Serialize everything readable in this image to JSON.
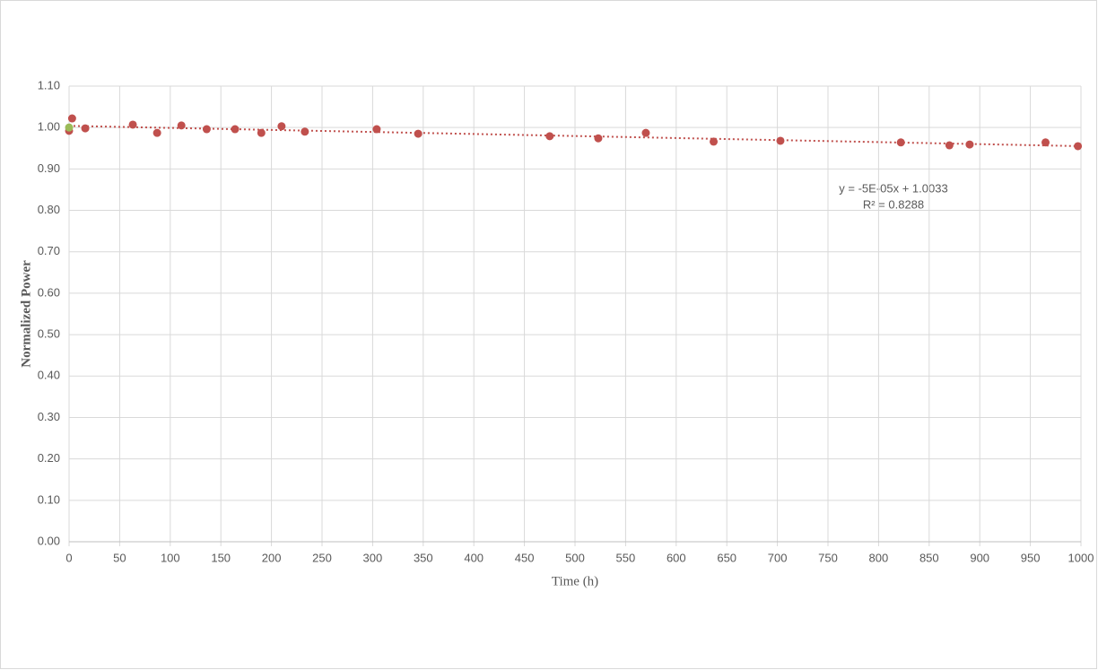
{
  "chart_data": {
    "type": "scatter",
    "xlabel": "Time (h)",
    "ylabel": "Normalized Power",
    "xlim": [
      0,
      1000
    ],
    "xticks": [
      0,
      50,
      100,
      150,
      200,
      250,
      300,
      350,
      400,
      450,
      500,
      550,
      600,
      650,
      700,
      750,
      800,
      850,
      900,
      950,
      1000
    ],
    "ylim": [
      0,
      1.1
    ],
    "yticks": [
      {
        "value": 0,
        "label": "0.00"
      },
      {
        "value": 0.1,
        "label": "0.10"
      },
      {
        "value": 0.2,
        "label": "0.20"
      },
      {
        "value": 0.3,
        "label": "0.30"
      },
      {
        "value": 0.4,
        "label": "0.40"
      },
      {
        "value": 0.5,
        "label": "0.50"
      },
      {
        "value": 0.6,
        "label": "0.60"
      },
      {
        "value": 0.7,
        "label": "0.70"
      },
      {
        "value": 0.8,
        "label": "0.80"
      },
      {
        "value": 0.9,
        "label": "0.90"
      },
      {
        "value": 1,
        "label": "1.00"
      },
      {
        "value": 1.1,
        "label": "1.10"
      }
    ],
    "grid": true,
    "series": [
      {
        "color": "#c0504d",
        "x": [
          0,
          3,
          16,
          63,
          87,
          111,
          136,
          164,
          190,
          210,
          233,
          304,
          345,
          475,
          523,
          570,
          637,
          703,
          822,
          870,
          890,
          965,
          997
        ],
        "values": [
          0.992,
          1.022,
          0.998,
          1.007,
          0.987,
          1.005,
          0.996,
          0.996,
          0.987,
          1.003,
          0.99,
          0.996,
          0.985,
          0.979,
          0.974,
          0.987,
          0.966,
          0.968,
          0.964,
          0.957,
          0.959,
          0.964,
          0.955
        ]
      },
      {
        "color": "#9bbb59",
        "x": [
          0
        ],
        "values": [
          1.0
        ]
      }
    ],
    "trendline": {
      "color": "#c0504d",
      "style": "dotted",
      "x": [
        0,
        1000
      ],
      "values": [
        1.004,
        0.955
      ],
      "equation": "y = -5E-05x + 1.0033",
      "r2": "R² = 0.8288"
    }
  }
}
